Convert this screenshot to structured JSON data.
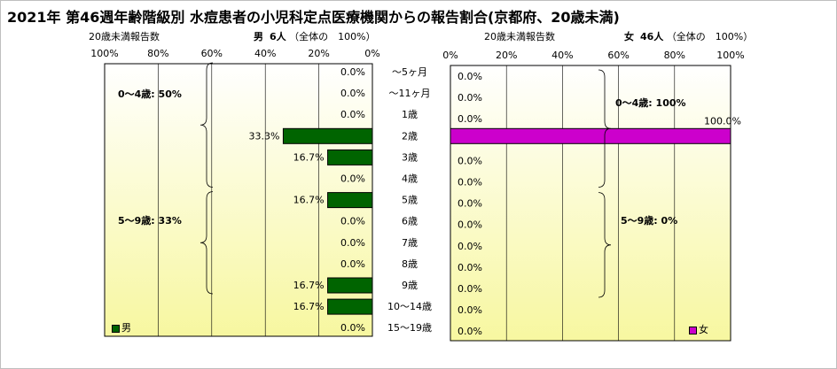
{
  "title": "2021年 第46週年齢階級別 水痘患者の小児科定点医療機関からの報告割合(京都府、20歳未満)",
  "headers": {
    "left_label": "20歳未満報告数",
    "left_gender": "男",
    "left_count": "6人",
    "left_total": "（全体の　100%）",
    "right_label": "20歳未満報告数",
    "right_gender": "女",
    "right_count": "46人",
    "right_total": "（全体の　100%）"
  },
  "colors": {
    "male": "#006400",
    "female": "#cc00cc",
    "bg_top": "#ffffff",
    "bg_bottom": "#f7f7a0"
  },
  "chart_data": [
    {
      "type": "bar",
      "name": "male",
      "orientation": "horizontal",
      "direction": "right-to-left",
      "categories": [
        "～5ヶ月",
        "～11ヶ月",
        "1歳",
        "2歳",
        "3歳",
        "4歳",
        "5歳",
        "6歳",
        "7歳",
        "8歳",
        "9歳",
        "10～14歳",
        "15～19歳"
      ],
      "values": [
        0.0,
        0.0,
        0.0,
        33.3,
        16.7,
        0.0,
        16.7,
        0.0,
        0.0,
        0.0,
        16.7,
        16.7,
        0.0
      ],
      "value_labels": [
        "0.0%",
        "0.0%",
        "0.0%",
        "33.3%",
        "16.7%",
        "0.0%",
        "16.7%",
        "0.0%",
        "0.0%",
        "0.0%",
        "16.7%",
        "16.7%",
        "0.0%"
      ],
      "xlim": [
        0,
        100
      ],
      "ticks": [
        "100%",
        "80%",
        "60%",
        "40%",
        "20%",
        "0%"
      ],
      "legend": "男",
      "annotations": [
        {
          "label": "0～4歳: 50%",
          "from_index": 0,
          "to_index": 5
        },
        {
          "label": "5～9歳: 33%",
          "from_index": 6,
          "to_index": 10
        }
      ]
    },
    {
      "type": "bar",
      "name": "female",
      "orientation": "horizontal",
      "direction": "left-to-right",
      "categories": [
        "～5ヶ月",
        "～11ヶ月",
        "1歳",
        "2歳",
        "3歳",
        "4歳",
        "5歳",
        "6歳",
        "7歳",
        "8歳",
        "9歳",
        "10～14歳",
        "15～19歳"
      ],
      "values": [
        0.0,
        0.0,
        0.0,
        100.0,
        0.0,
        0.0,
        0.0,
        0.0,
        0.0,
        0.0,
        0.0,
        0.0,
        0.0
      ],
      "value_labels": [
        "0.0%",
        "0.0%",
        "0.0%",
        "100.0%",
        "0.0%",
        "0.0%",
        "0.0%",
        "0.0%",
        "0.0%",
        "0.0%",
        "0.0%",
        "0.0%",
        "0.0%"
      ],
      "xlim": [
        0,
        100
      ],
      "ticks": [
        "0%",
        "20%",
        "40%",
        "60%",
        "80%",
        "100%"
      ],
      "legend": "女",
      "annotations": [
        {
          "label": "0～4歳: 100%",
          "from_index": 0,
          "to_index": 5
        },
        {
          "label": "5～9歳: 0%",
          "from_index": 6,
          "to_index": 10
        }
      ]
    }
  ]
}
